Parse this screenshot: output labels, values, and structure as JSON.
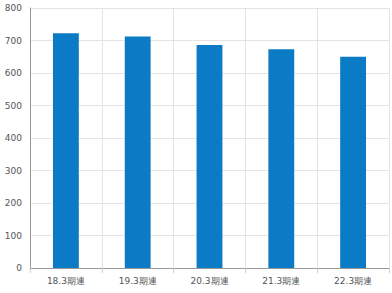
{
  "chart_data": {
    "type": "bar",
    "categories": [
      "18.3期連",
      "19.3期連",
      "20.3期連",
      "21.3期連",
      "22.3期連"
    ],
    "values": [
      722,
      712,
      686,
      673,
      650
    ],
    "color": "#0a7bc4",
    "ylim": [
      0,
      800
    ],
    "yticks": [
      0,
      100,
      200,
      300,
      400,
      500,
      600,
      700,
      800
    ],
    "grid": true
  }
}
